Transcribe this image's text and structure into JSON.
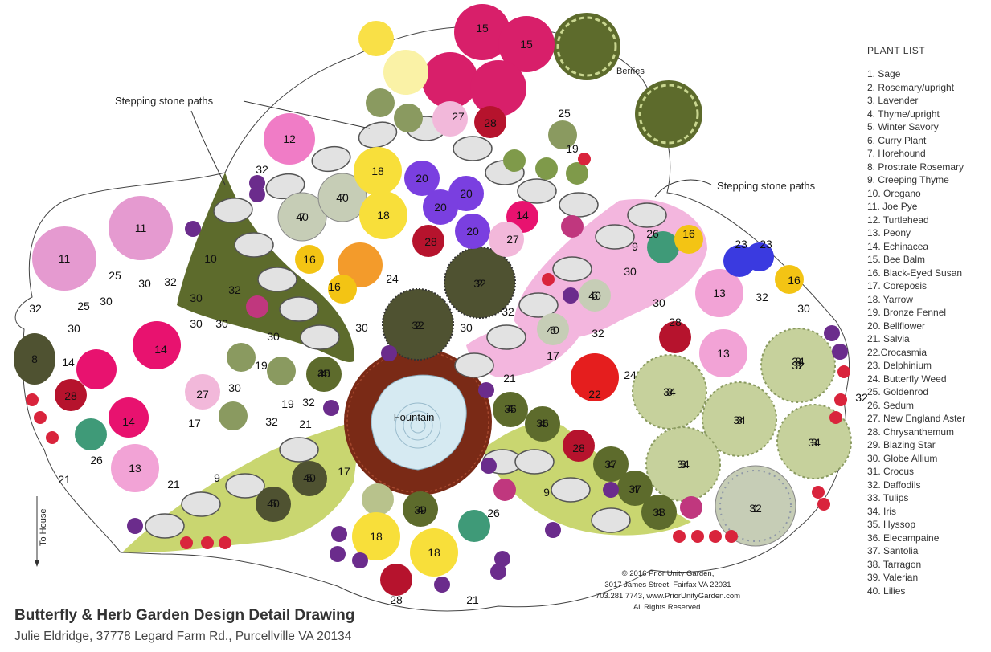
{
  "plant_list": {
    "title": "PLANT LIST",
    "items": [
      "1. Sage",
      "2. Rosemary/upright",
      "3. Lavender",
      "4. Thyme/upright",
      "5. Winter Savory",
      "6. Curry Plant",
      "7. Horehound",
      "8. Prostrate Rosemary",
      "9. Creeping Thyme",
      "10. Oregano",
      "11. Joe Pye",
      "12. Turtlehead",
      "13. Peony",
      "14. Echinacea",
      "15. Bee Balm",
      "16. Black-Eyed Susan",
      "17. Coreposis",
      "18. Yarrow",
      "19. Bronze Fennel",
      "20. Bellflower",
      "21. Salvia",
      "22.Crocasmia",
      "23. Delphinium",
      "24. Butterfly Weed",
      "25. Goldenrod",
      "26. Sedum",
      "27. New England Aster",
      "28. Chrysanthemum",
      "29. Blazing Star",
      "30. Globe Allium",
      "31. Crocus",
      "32. Daffodils",
      "33. Tulips",
      "34. Iris",
      "35. Hyssop",
      "36. Elecampaine",
      "37. Santolia",
      "38. Tarragon",
      "39. Valerian",
      "40. Lilies"
    ]
  },
  "title": {
    "main": "Butterfly & Herb Garden Design  Detail Drawing",
    "sub": "Julie Eldridge, 37778 Legard Farm Rd., Purcellville VA 20134"
  },
  "credit": {
    "line1": "© 2016 Prior Unity Garden,",
    "line2": "3017 James Street, Fairfax VA 22031",
    "line3": "703.281.7743, www.PriorUnityGarden.com",
    "line4": "All Rights Reserved."
  },
  "callouts": {
    "paths_left": "Stepping stone paths",
    "paths_right": "Stepping stone paths",
    "berries": "Berries",
    "fountain": "Fountain",
    "to_house": "To House"
  },
  "colors": {
    "herb_dark": "#5d6b2c",
    "herb_light": "#c4d470",
    "crocus": "#6b2c8c",
    "tulip": "#d9243c",
    "mulch": "#7a2a16",
    "fountain": "#cfe4ee",
    "thyme_pink": "#f3b6de"
  },
  "labels": [
    "1",
    "2",
    "2",
    "3",
    "3",
    "3",
    "3",
    "3",
    "3",
    "4",
    "4",
    "4",
    "4",
    "4",
    "4",
    "4",
    "4",
    "5",
    "5",
    "6",
    "6",
    "7",
    "7",
    "8",
    "9",
    "9",
    "9",
    "10",
    "11",
    "11",
    "12",
    "13",
    "13",
    "13",
    "14",
    "14",
    "14",
    "14",
    "15",
    "15",
    "16",
    "16",
    "16",
    "16",
    "17",
    "17",
    "17",
    "18",
    "18",
    "18",
    "18",
    "19",
    "19",
    "19",
    "20",
    "20",
    "20",
    "20",
    "21",
    "21",
    "21",
    "21",
    "21",
    "22",
    "23",
    "23",
    "24",
    "24",
    "25",
    "25",
    "25",
    "26",
    "26",
    "26",
    "27",
    "27",
    "27",
    "28",
    "28",
    "28",
    "28",
    "28",
    "28",
    "30",
    "30",
    "30",
    "30",
    "30",
    "30",
    "30",
    "30",
    "30",
    "30",
    "30",
    "30",
    "30",
    "32",
    "32",
    "32",
    "32",
    "32",
    "32",
    "32",
    "32",
    "32",
    "32",
    "32",
    "32",
    "32",
    "32",
    "34",
    "34",
    "34",
    "34",
    "34",
    "35",
    "36",
    "36",
    "37",
    "37",
    "38",
    "39",
    "40",
    "40",
    "40",
    "40",
    "40",
    "40",
    "40"
  ]
}
